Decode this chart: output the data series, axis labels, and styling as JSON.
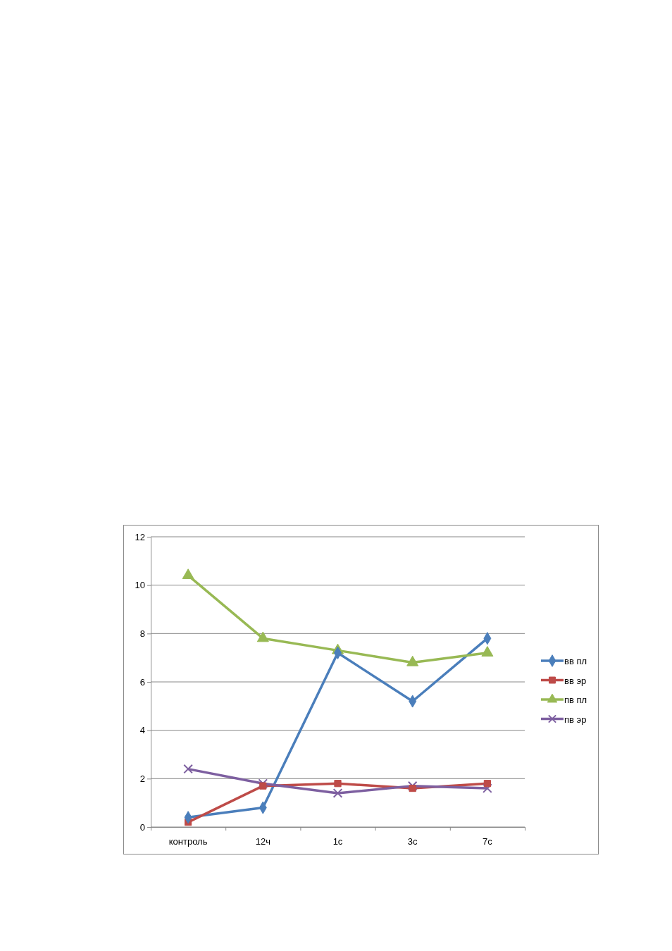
{
  "chart_data": {
    "type": "line",
    "categories": [
      "контроль",
      "12ч",
      "1с",
      "3с",
      "7с"
    ],
    "series": [
      {
        "name": "вв пл",
        "color": "#4a7ebb",
        "marker": "diamond",
        "values": [
          0.4,
          0.8,
          7.2,
          5.2,
          7.8
        ]
      },
      {
        "name": "вв эр",
        "color": "#be4b48",
        "marker": "square",
        "values": [
          0.2,
          1.7,
          1.8,
          1.6,
          1.8
        ]
      },
      {
        "name": "пв пл",
        "color": "#98b954",
        "marker": "triangle",
        "values": [
          10.4,
          7.8,
          7.3,
          6.8,
          7.2
        ]
      },
      {
        "name": "пв эр",
        "color": "#7d5fa0",
        "marker": "cross",
        "values": [
          2.4,
          1.8,
          1.4,
          1.7,
          1.6
        ]
      }
    ],
    "ylim": [
      0,
      12
    ],
    "yticks": [
      0,
      2,
      4,
      6,
      8,
      10,
      12
    ],
    "grid": "y",
    "legend": "right",
    "line_style": "solid"
  }
}
